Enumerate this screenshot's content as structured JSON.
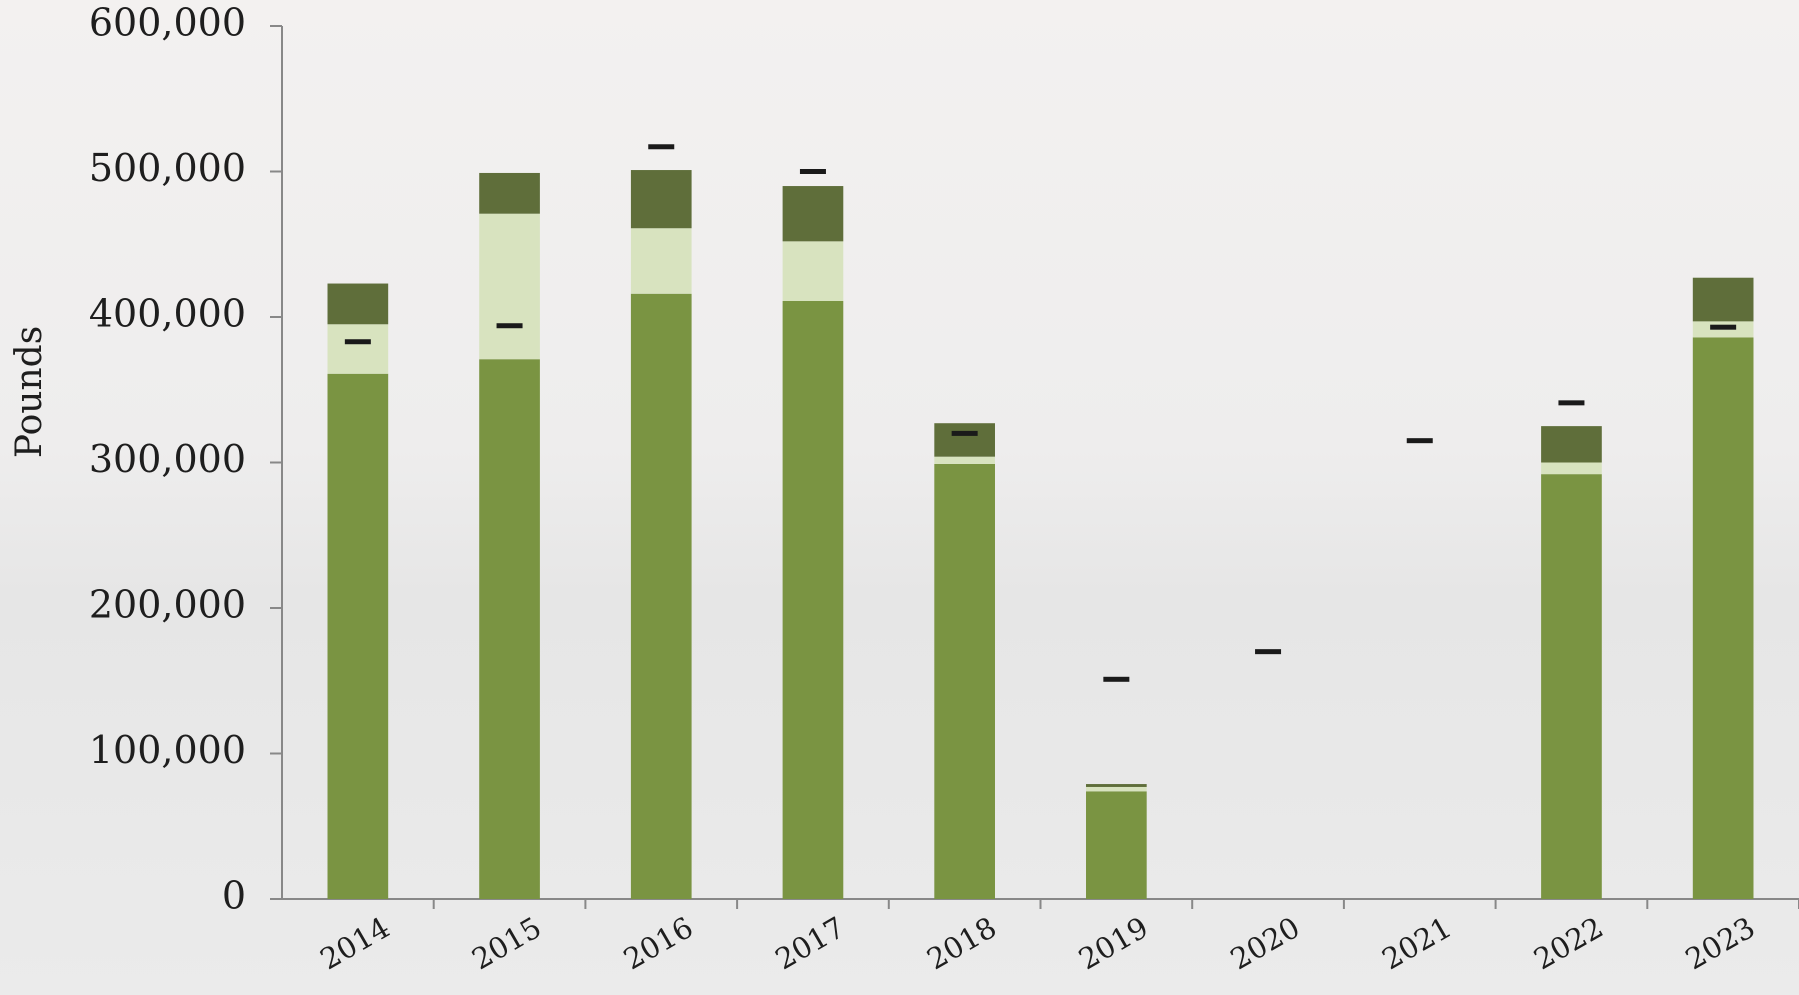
{
  "chart_data": {
    "type": "bar",
    "stacked": true,
    "y_label": "Pounds",
    "categories": [
      "2014",
      "2015",
      "2016",
      "2017",
      "2018",
      "2019",
      "2020",
      "2021",
      "2022",
      "2023"
    ],
    "series": [
      {
        "color": "#7a9442",
        "values": [
          361000,
          371000,
          416000,
          411000,
          299000,
          74000,
          null,
          null,
          292000,
          386000
        ]
      },
      {
        "color": "#d8e3bf",
        "values": [
          34000,
          100000,
          45000,
          41000,
          5000,
          3000,
          null,
          null,
          8000,
          11000
        ]
      },
      {
        "color": "#5f6e3a",
        "values": [
          28000,
          28000,
          40000,
          38000,
          23000,
          2000,
          null,
          null,
          25000,
          30000
        ]
      }
    ],
    "markers": {
      "color": "#1a1a1a",
      "values": [
        383000,
        394000,
        517000,
        500000,
        320000,
        151000,
        170000,
        315000,
        341000,
        393000
      ]
    },
    "ylim": [
      0,
      600000
    ],
    "yticks": [
      0,
      {
        "value": 100000,
        "label": "100,000"
      },
      {
        "value": 200000,
        "label": "200,000"
      },
      {
        "value": 300000,
        "label": "300,000"
      },
      {
        "value": 400000,
        "label": "400,000"
      },
      {
        "value": 500000,
        "label": "500,000"
      },
      {
        "value": 600000,
        "label": "600,000"
      }
    ]
  }
}
